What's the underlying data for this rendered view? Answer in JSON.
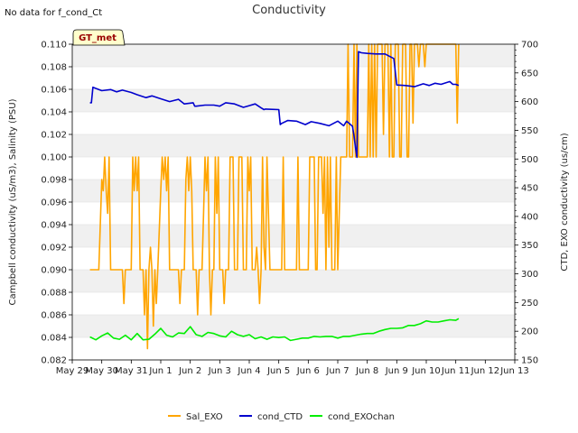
{
  "chart_data": {
    "type": "line",
    "title": "Conductivity",
    "top_left_note": "No data for f_cond_Ct",
    "badge": "GT_met",
    "ylabel_left": "Campbell conductivity (uS/m3), Salinity (PSU)",
    "ylabel_right": "CTD, EXO conductivity (us/cm)",
    "xlabel": "",
    "x_ticks": [
      "May 29",
      "May 30",
      "May 31",
      "Jun 1",
      "Jun 2",
      "Jun 3",
      "Jun 4",
      "Jun 5",
      "Jun 6",
      "Jun 7",
      "Jun 8",
      "Jun 9",
      "Jun 10",
      "Jun 11",
      "Jun 12",
      "Jun 13"
    ],
    "xlim_days": [
      0,
      15
    ],
    "ylim_left": [
      0.082,
      0.11
    ],
    "yticks_left": [
      "0.082",
      "0.084",
      "0.086",
      "0.088",
      "0.090",
      "0.092",
      "0.094",
      "0.096",
      "0.098",
      "0.100",
      "0.102",
      "0.104",
      "0.106",
      "0.108",
      "0.110"
    ],
    "ylim_right": [
      150,
      700
    ],
    "yticks_right": [
      "150",
      "200",
      "250",
      "300",
      "350",
      "400",
      "450",
      "500",
      "550",
      "600",
      "650",
      "700"
    ],
    "legend": [
      {
        "name": "Sal_EXO",
        "color": "#FFA500"
      },
      {
        "name": "cond_CTD",
        "color": "#0000CD"
      },
      {
        "name": "cond_EXOchan",
        "color": "#00EE00"
      }
    ],
    "series": [
      {
        "name": "Sal_EXO",
        "axis": "left",
        "color": "#FFA500",
        "points": [
          [
            0.6,
            0.09
          ],
          [
            0.9,
            0.09
          ],
          [
            1.0,
            0.098
          ],
          [
            1.05,
            0.097
          ],
          [
            1.1,
            0.1
          ],
          [
            1.15,
            0.097
          ],
          [
            1.2,
            0.095
          ],
          [
            1.25,
            0.1
          ],
          [
            1.3,
            0.09
          ],
          [
            1.7,
            0.09
          ],
          [
            1.75,
            0.087
          ],
          [
            1.8,
            0.09
          ],
          [
            2.0,
            0.09
          ],
          [
            2.05,
            0.1
          ],
          [
            2.1,
            0.097
          ],
          [
            2.15,
            0.1
          ],
          [
            2.2,
            0.097
          ],
          [
            2.25,
            0.1
          ],
          [
            2.3,
            0.09
          ],
          [
            2.4,
            0.09
          ],
          [
            2.45,
            0.086
          ],
          [
            2.5,
            0.09
          ],
          [
            2.55,
            0.083
          ],
          [
            2.6,
            0.09
          ],
          [
            2.65,
            0.092
          ],
          [
            2.7,
            0.09
          ],
          [
            2.75,
            0.085
          ],
          [
            2.8,
            0.09
          ],
          [
            2.85,
            0.087
          ],
          [
            2.9,
            0.09
          ],
          [
            3.0,
            0.097
          ],
          [
            3.05,
            0.1
          ],
          [
            3.1,
            0.098
          ],
          [
            3.15,
            0.1
          ],
          [
            3.2,
            0.097
          ],
          [
            3.25,
            0.1
          ],
          [
            3.3,
            0.09
          ],
          [
            3.6,
            0.09
          ],
          [
            3.65,
            0.087
          ],
          [
            3.7,
            0.09
          ],
          [
            3.8,
            0.09
          ],
          [
            3.85,
            0.098
          ],
          [
            3.9,
            0.1
          ],
          [
            3.95,
            0.097
          ],
          [
            4.0,
            0.1
          ],
          [
            4.05,
            0.097
          ],
          [
            4.1,
            0.09
          ],
          [
            4.2,
            0.09
          ],
          [
            4.25,
            0.086
          ],
          [
            4.3,
            0.09
          ],
          [
            4.4,
            0.09
          ],
          [
            4.45,
            0.095
          ],
          [
            4.5,
            0.1
          ],
          [
            4.55,
            0.097
          ],
          [
            4.6,
            0.1
          ],
          [
            4.65,
            0.09
          ],
          [
            4.7,
            0.086
          ],
          [
            4.75,
            0.09
          ],
          [
            4.8,
            0.09
          ],
          [
            4.85,
            0.1
          ],
          [
            4.9,
            0.095
          ],
          [
            4.95,
            0.1
          ],
          [
            5.0,
            0.09
          ],
          [
            5.1,
            0.09
          ],
          [
            5.15,
            0.087
          ],
          [
            5.2,
            0.09
          ],
          [
            5.3,
            0.09
          ],
          [
            5.35,
            0.1
          ],
          [
            5.45,
            0.1
          ],
          [
            5.5,
            0.09
          ],
          [
            5.6,
            0.09
          ],
          [
            5.65,
            0.1
          ],
          [
            5.75,
            0.1
          ],
          [
            5.8,
            0.09
          ],
          [
            5.9,
            0.09
          ],
          [
            5.95,
            0.1
          ],
          [
            6.0,
            0.097
          ],
          [
            6.05,
            0.1
          ],
          [
            6.1,
            0.09
          ],
          [
            6.2,
            0.09
          ],
          [
            6.25,
            0.092
          ],
          [
            6.3,
            0.09
          ],
          [
            6.35,
            0.087
          ],
          [
            6.4,
            0.09
          ],
          [
            6.45,
            0.1
          ],
          [
            6.5,
            0.092
          ],
          [
            6.55,
            0.09
          ],
          [
            6.6,
            0.1
          ],
          [
            6.7,
            0.09
          ],
          [
            7.1,
            0.09
          ],
          [
            7.15,
            0.1
          ],
          [
            7.2,
            0.09
          ],
          [
            7.6,
            0.09
          ],
          [
            7.65,
            0.1
          ],
          [
            7.7,
            0.09
          ],
          [
            8.0,
            0.09
          ],
          [
            8.05,
            0.1
          ],
          [
            8.2,
            0.1
          ],
          [
            8.25,
            0.09
          ],
          [
            8.3,
            0.09
          ],
          [
            8.35,
            0.1
          ],
          [
            8.45,
            0.1
          ],
          [
            8.5,
            0.095
          ],
          [
            8.55,
            0.1
          ],
          [
            8.6,
            0.09
          ],
          [
            8.65,
            0.1
          ],
          [
            8.7,
            0.092
          ],
          [
            8.75,
            0.1
          ],
          [
            8.8,
            0.09
          ],
          [
            8.9,
            0.09
          ],
          [
            8.95,
            0.1
          ],
          [
            9.0,
            0.09
          ],
          [
            9.1,
            0.1
          ],
          [
            9.3,
            0.1
          ],
          [
            9.35,
            0.11
          ],
          [
            9.4,
            0.1
          ],
          [
            9.5,
            0.1
          ],
          [
            9.55,
            0.11
          ],
          [
            9.6,
            0.1
          ],
          [
            9.65,
            0.11
          ],
          [
            9.7,
            0.1
          ],
          [
            10.0,
            0.1
          ],
          [
            10.05,
            0.11
          ],
          [
            10.1,
            0.1
          ],
          [
            10.15,
            0.11
          ],
          [
            10.2,
            0.1
          ],
          [
            10.25,
            0.11
          ],
          [
            10.3,
            0.1
          ],
          [
            10.35,
            0.11
          ],
          [
            10.5,
            0.11
          ],
          [
            10.55,
            0.102
          ],
          [
            10.6,
            0.11
          ],
          [
            10.7,
            0.11
          ],
          [
            10.75,
            0.1
          ],
          [
            10.8,
            0.11
          ],
          [
            10.85,
            0.1
          ],
          [
            10.9,
            0.1
          ],
          [
            10.95,
            0.11
          ],
          [
            11.05,
            0.11
          ],
          [
            11.1,
            0.1
          ],
          [
            11.15,
            0.1
          ],
          [
            11.2,
            0.11
          ],
          [
            11.3,
            0.11
          ],
          [
            11.35,
            0.1
          ],
          [
            11.4,
            0.1
          ],
          [
            11.45,
            0.11
          ],
          [
            11.5,
            0.11
          ],
          [
            11.55,
            0.103
          ],
          [
            11.6,
            0.11
          ],
          [
            11.7,
            0.11
          ],
          [
            11.75,
            0.108
          ],
          [
            11.8,
            0.11
          ],
          [
            11.9,
            0.11
          ],
          [
            11.95,
            0.108
          ],
          [
            12.0,
            0.11
          ],
          [
            13.0,
            0.11
          ],
          [
            13.05,
            0.103
          ],
          [
            13.1,
            0.11
          ]
        ]
      },
      {
        "name": "cond_CTD",
        "axis": "right",
        "color": "#0000CD",
        "points": [
          [
            0.6,
            598
          ],
          [
            0.65,
            598
          ],
          [
            0.7,
            625
          ],
          [
            0.8,
            623
          ],
          [
            1.0,
            619
          ],
          [
            1.3,
            621
          ],
          [
            1.5,
            617
          ],
          [
            1.7,
            620
          ],
          [
            2.0,
            616
          ],
          [
            2.2,
            612
          ],
          [
            2.5,
            607
          ],
          [
            2.7,
            610
          ],
          [
            3.0,
            605
          ],
          [
            3.3,
            600
          ],
          [
            3.6,
            604
          ],
          [
            3.8,
            596
          ],
          [
            4.1,
            598
          ],
          [
            4.15,
            592
          ],
          [
            4.2,
            592
          ],
          [
            4.5,
            594
          ],
          [
            4.8,
            594
          ],
          [
            5.0,
            592
          ],
          [
            5.2,
            598
          ],
          [
            5.5,
            596
          ],
          [
            5.8,
            590
          ],
          [
            6.0,
            593
          ],
          [
            6.2,
            596
          ],
          [
            6.4,
            589
          ],
          [
            6.5,
            586
          ],
          [
            6.55,
            587
          ],
          [
            7.0,
            586
          ],
          [
            7.05,
            560
          ],
          [
            7.1,
            562
          ],
          [
            7.3,
            567
          ],
          [
            7.6,
            566
          ],
          [
            7.9,
            560
          ],
          [
            8.1,
            565
          ],
          [
            8.4,
            562
          ],
          [
            8.7,
            558
          ],
          [
            9.0,
            566
          ],
          [
            9.2,
            558
          ],
          [
            9.3,
            566
          ],
          [
            9.5,
            557
          ],
          [
            9.55,
            540
          ],
          [
            9.6,
            520
          ],
          [
            9.65,
            503
          ],
          [
            9.7,
            687
          ],
          [
            9.8,
            685
          ],
          [
            10.0,
            684
          ],
          [
            10.3,
            683
          ],
          [
            10.6,
            683
          ],
          [
            10.9,
            675
          ],
          [
            11.0,
            629
          ],
          [
            11.3,
            628
          ],
          [
            11.6,
            626
          ],
          [
            11.9,
            631
          ],
          [
            12.1,
            628
          ],
          [
            12.3,
            632
          ],
          [
            12.5,
            630
          ],
          [
            12.8,
            635
          ],
          [
            12.9,
            630
          ],
          [
            13.0,
            630
          ],
          [
            13.1,
            628
          ]
        ]
      },
      {
        "name": "cond_EXOchan",
        "axis": "right",
        "color": "#00EE00",
        "points": [
          [
            0.6,
            190
          ],
          [
            0.8,
            185
          ],
          [
            1.0,
            192
          ],
          [
            1.2,
            197
          ],
          [
            1.4,
            188
          ],
          [
            1.6,
            186
          ],
          [
            1.8,
            193
          ],
          [
            2.0,
            185
          ],
          [
            2.2,
            196
          ],
          [
            2.4,
            185
          ],
          [
            2.6,
            186
          ],
          [
            2.8,
            195
          ],
          [
            3.0,
            205
          ],
          [
            3.2,
            193
          ],
          [
            3.4,
            190
          ],
          [
            3.6,
            197
          ],
          [
            3.8,
            196
          ],
          [
            4.0,
            208
          ],
          [
            4.2,
            194
          ],
          [
            4.4,
            191
          ],
          [
            4.6,
            198
          ],
          [
            4.8,
            196
          ],
          [
            5.0,
            192
          ],
          [
            5.2,
            190
          ],
          [
            5.4,
            200
          ],
          [
            5.6,
            194
          ],
          [
            5.8,
            191
          ],
          [
            6.0,
            194
          ],
          [
            6.2,
            187
          ],
          [
            6.4,
            190
          ],
          [
            6.6,
            186
          ],
          [
            6.8,
            190
          ],
          [
            7.0,
            189
          ],
          [
            7.2,
            190
          ],
          [
            7.4,
            184
          ],
          [
            7.6,
            186
          ],
          [
            7.8,
            188
          ],
          [
            8.0,
            188
          ],
          [
            8.2,
            191
          ],
          [
            8.4,
            190
          ],
          [
            8.6,
            191
          ],
          [
            8.8,
            191
          ],
          [
            9.0,
            188
          ],
          [
            9.2,
            191
          ],
          [
            9.4,
            191
          ],
          [
            9.6,
            193
          ],
          [
            9.8,
            195
          ],
          [
            10.0,
            196
          ],
          [
            10.2,
            196
          ],
          [
            10.4,
            200
          ],
          [
            10.6,
            203
          ],
          [
            10.8,
            205
          ],
          [
            11.0,
            205
          ],
          [
            11.2,
            206
          ],
          [
            11.4,
            210
          ],
          [
            11.6,
            210
          ],
          [
            11.8,
            213
          ],
          [
            12.0,
            218
          ],
          [
            12.2,
            216
          ],
          [
            12.4,
            216
          ],
          [
            12.6,
            218
          ],
          [
            12.8,
            220
          ],
          [
            13.0,
            219
          ],
          [
            13.1,
            222
          ]
        ]
      }
    ]
  }
}
